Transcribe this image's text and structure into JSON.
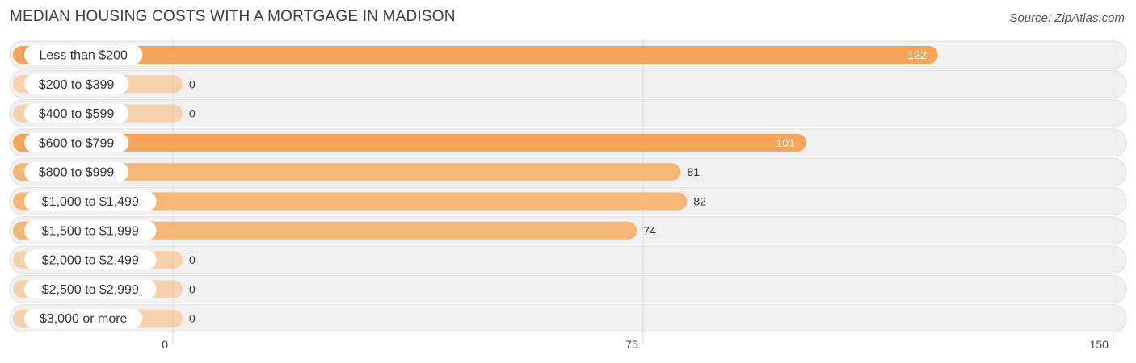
{
  "title": "MEDIAN HOUSING COSTS WITH A MORTGAGE IN MADISON",
  "source": "Source: ZipAtlas.com",
  "colors": {
    "bar": "#f8b676",
    "bar_strong": "#f5a55c",
    "track": "#f1f1f1",
    "track_border": "#dddddd",
    "grid": "#dcdcdc"
  },
  "chart_data": {
    "type": "bar",
    "orientation": "horizontal",
    "categories": [
      "Less than $200",
      "$200 to $399",
      "$400 to $599",
      "$600 to $799",
      "$800 to $999",
      "$1,000 to $1,499",
      "$1,500 to $1,999",
      "$2,000 to $2,499",
      "$2,500 to $2,999",
      "$3,000 or more"
    ],
    "values": [
      122,
      0,
      0,
      101,
      81,
      82,
      74,
      0,
      0,
      0
    ],
    "xlim": [
      0,
      150
    ],
    "xticks": [
      0,
      75,
      150
    ],
    "xtick_labels": [
      "0",
      "75",
      "150"
    ],
    "grid": true
  }
}
